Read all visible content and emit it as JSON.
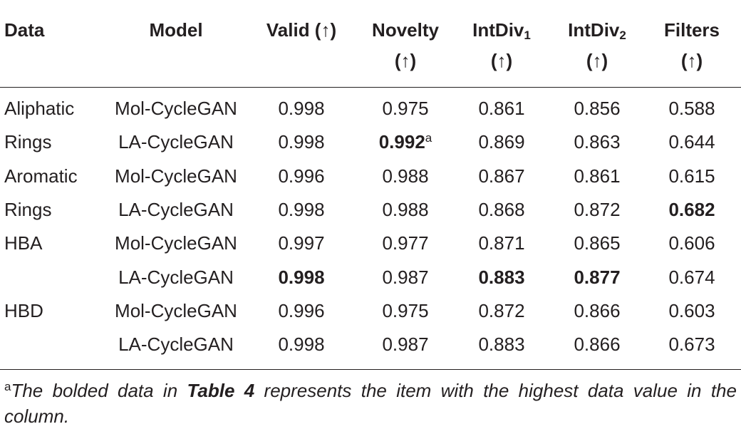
{
  "table": {
    "header": [
      {
        "label": "Data"
      },
      {
        "label": "Model"
      },
      {
        "label": "Valid (↑)"
      },
      {
        "label": "Novelty",
        "second": "(↑)"
      },
      {
        "label": "IntDiv",
        "sub": "1",
        "second": "(↑)"
      },
      {
        "label": "IntDiv",
        "sub": "2",
        "second": "(↑)"
      },
      {
        "label": "Filters",
        "second": "(↑)"
      }
    ],
    "rows": [
      [
        "Aliphatic",
        "Mol-CycleGAN",
        "0.998",
        "0.975",
        "0.861",
        "0.856",
        "0.588"
      ],
      [
        "Rings",
        "LA-CycleGAN",
        "0.998",
        {
          "text": "0.992",
          "bold": true,
          "note": "a"
        },
        "0.869",
        "0.863",
        "0.644"
      ],
      [
        "Aromatic",
        "Mol-CycleGAN",
        "0.996",
        "0.988",
        "0.867",
        "0.861",
        "0.615"
      ],
      [
        "Rings",
        "LA-CycleGAN",
        "0.998",
        "0.988",
        "0.868",
        "0.872",
        {
          "text": "0.682",
          "bold": true
        }
      ],
      [
        "HBA",
        "Mol-CycleGAN",
        "0.997",
        "0.977",
        "0.871",
        "0.865",
        "0.606"
      ],
      [
        null,
        "LA-CycleGAN",
        {
          "text": "0.998",
          "bold": true
        },
        "0.987",
        {
          "text": "0.883",
          "bold": true
        },
        {
          "text": "0.877",
          "bold": true
        },
        "0.674"
      ],
      [
        "HBD",
        "Mol-CycleGAN",
        "0.996",
        "0.975",
        "0.872",
        "0.866",
        "0.603"
      ],
      [
        null,
        "LA-CycleGAN",
        "0.998",
        "0.987",
        "0.883",
        "0.866",
        "0.673"
      ]
    ],
    "footnote": {
      "mark": "a",
      "parts": [
        {
          "text": "The bolded data in "
        },
        {
          "text": "Table 4",
          "bold": true
        },
        {
          "text": " represents the item with the highest data value in the column."
        }
      ]
    }
  }
}
